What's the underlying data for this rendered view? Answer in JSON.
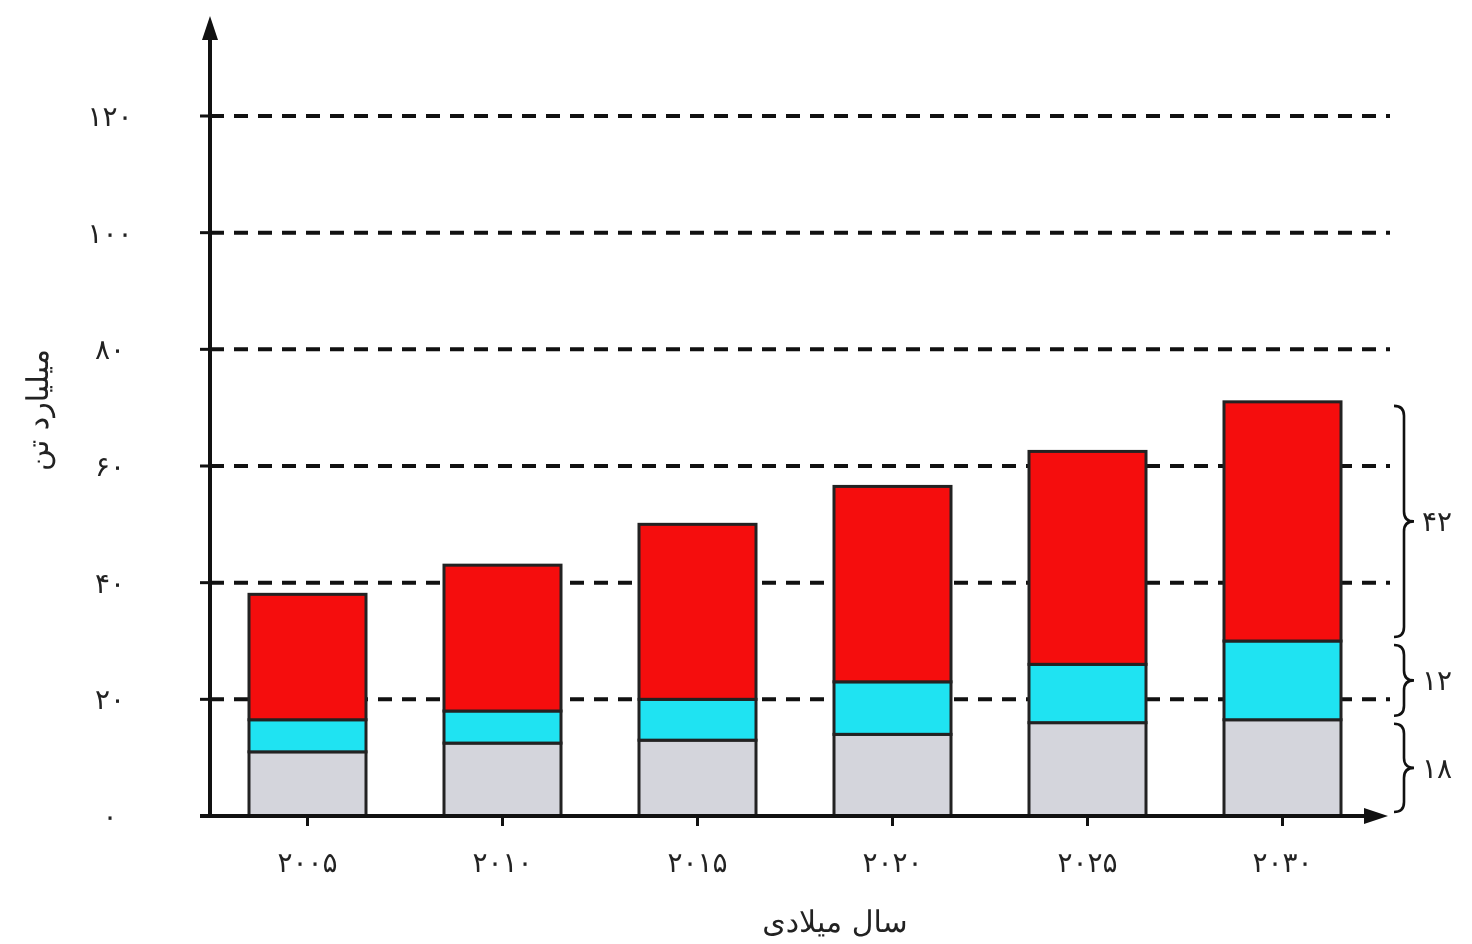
{
  "chart_data": {
    "type": "bar",
    "stacked": true,
    "xlabel": "سال میلادی",
    "ylabel": "میلیارد تن",
    "categories": [
      "۲۰۰۵",
      "۲۰۱۰",
      "۲۰۱۵",
      "۲۰۲۰",
      "۲۰۲۵",
      "۲۰۳۰"
    ],
    "series": [
      {
        "color": "#d4d5dc",
        "values": [
          11,
          12.5,
          13,
          14,
          16,
          16.5
        ]
      },
      {
        "color": "#1fe3f2",
        "values": [
          5.5,
          5.5,
          7,
          9,
          10,
          13.5
        ]
      },
      {
        "color": "#f50d0d",
        "values": [
          21.5,
          25,
          30,
          33.5,
          36.5,
          41
        ]
      }
    ],
    "ylim": [
      0,
      120
    ],
    "yticks": [
      {
        "value": 0,
        "label": "۰"
      },
      {
        "value": 20,
        "label": "۲۰"
      },
      {
        "value": 40,
        "label": "۴۰"
      },
      {
        "value": 60,
        "label": "۶۰"
      },
      {
        "value": 80,
        "label": "۸۰"
      },
      {
        "value": 100,
        "label": "۱۰۰"
      },
      {
        "value": 120,
        "label": "۱۲۰"
      }
    ],
    "grid": "y",
    "line_style": "dashed",
    "annotations": [
      "۱۸",
      "۱۲",
      "۴۲"
    ]
  }
}
